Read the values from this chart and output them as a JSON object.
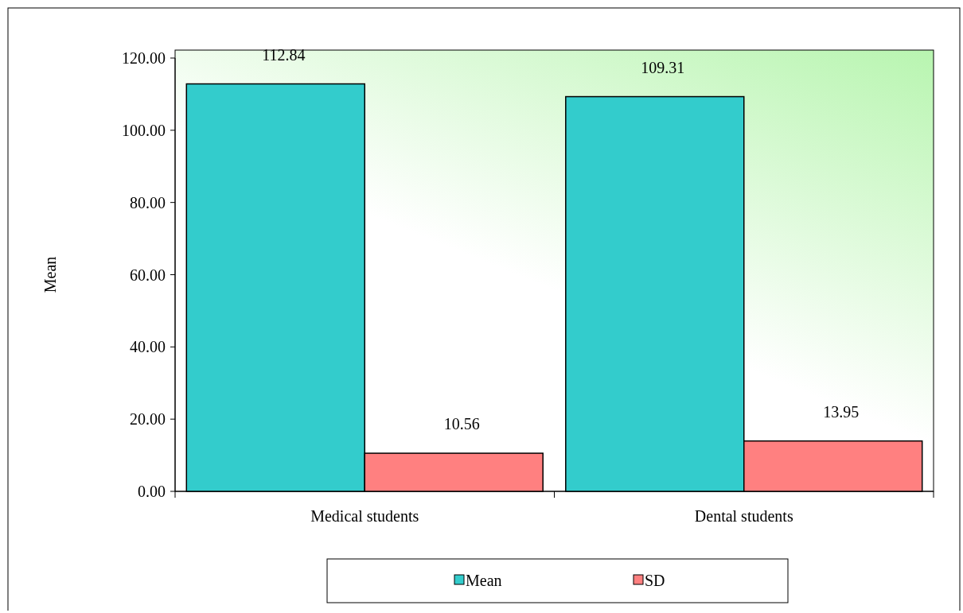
{
  "chart_data": {
    "type": "bar",
    "ylabel": "Mean",
    "categories": [
      "Medical students",
      "Dental students"
    ],
    "series": [
      {
        "name": "Mean",
        "color": "#33cccc",
        "values": [
          112.84,
          109.31
        ]
      },
      {
        "name": "SD",
        "color": "#ff8080",
        "values": [
          10.56,
          13.95
        ]
      }
    ],
    "ylim": [
      0,
      120
    ],
    "yticks": [
      {
        "value": 0,
        "label": "0.00"
      },
      {
        "value": 20,
        "label": "20.00"
      },
      {
        "value": 40,
        "label": "40.00"
      },
      {
        "value": 60,
        "label": "60.00"
      },
      {
        "value": 80,
        "label": "80.00"
      },
      {
        "value": 100,
        "label": "100.00"
      },
      {
        "value": 120,
        "label": "120.00"
      }
    ],
    "data_labels": true,
    "legend": "bottom"
  }
}
